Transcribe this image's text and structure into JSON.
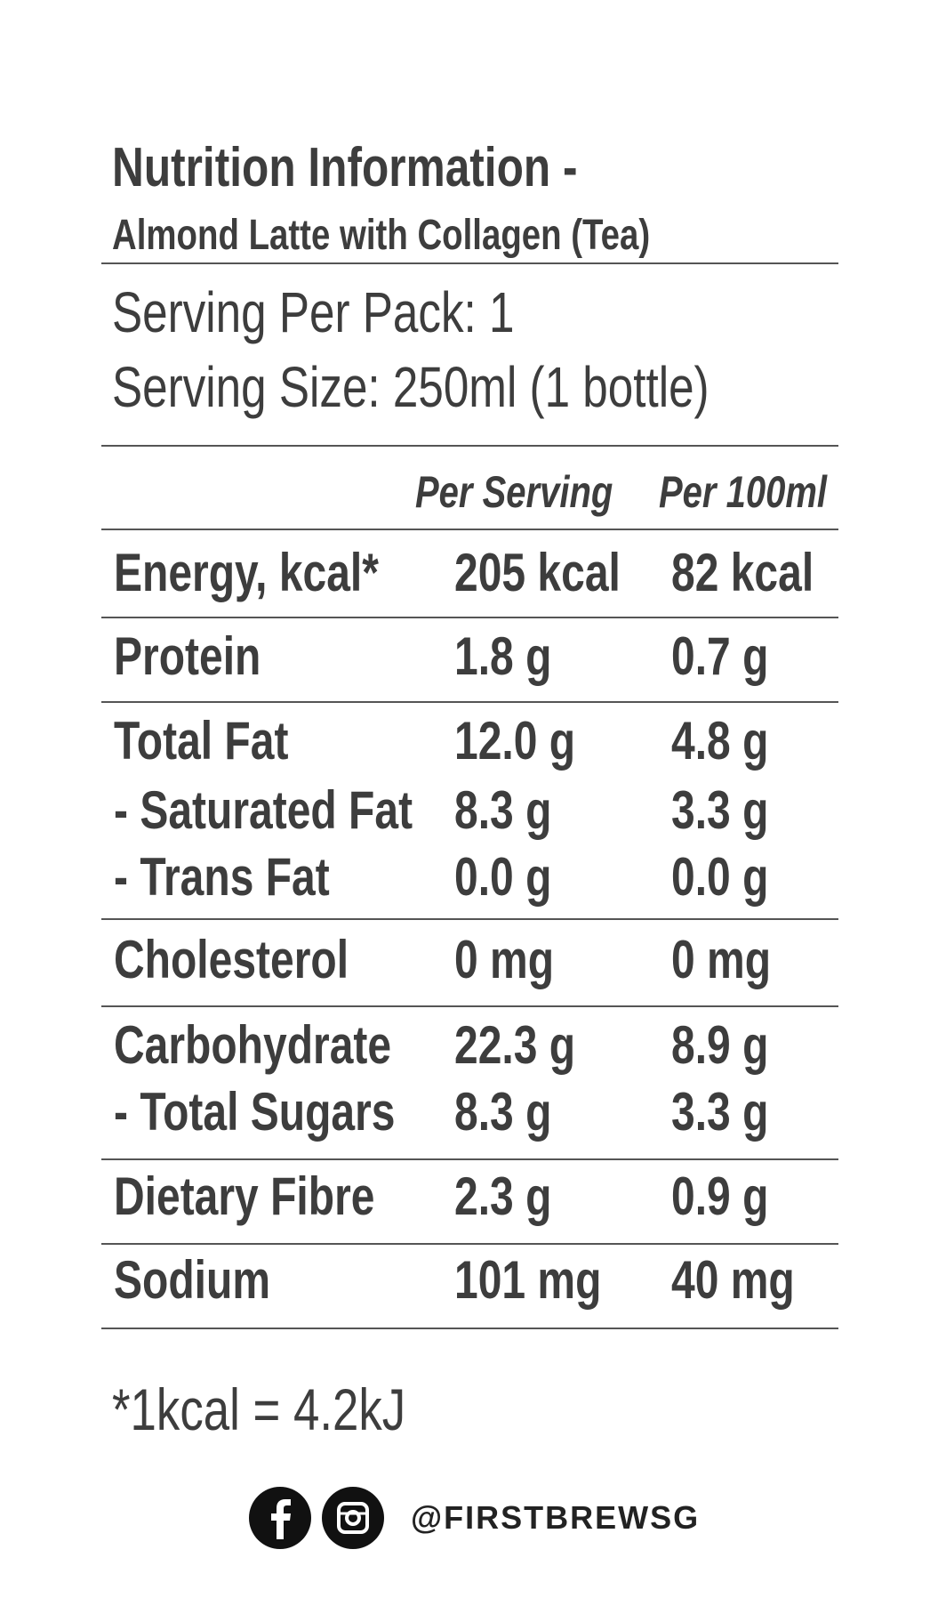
{
  "header": {
    "title": "Nutrition Information -",
    "subtitle": "Almond Latte with Collagen (Tea)"
  },
  "serving": {
    "per_pack": "Serving Per Pack: 1",
    "size": "Serving Size: 250ml (1 bottle)"
  },
  "table": {
    "columns": [
      "Per Serving",
      "Per 100ml"
    ],
    "rows": [
      [
        "Energy, kcal*",
        "205 kcal",
        "82 kcal"
      ],
      [
        "Protein",
        "1.8 g",
        "0.7 g"
      ],
      [
        "Total Fat",
        "12.0 g",
        "4.8 g"
      ],
      [
        "- Saturated Fat",
        "8.3 g",
        "3.3 g"
      ],
      [
        "- Trans Fat",
        "0.0 g",
        "0.0 g"
      ],
      [
        "Cholesterol",
        "0 mg",
        "0 mg"
      ],
      [
        "Carbohydrate",
        "22.3 g",
        "8.9 g"
      ],
      [
        "- Total Sugars",
        "8.3 g",
        "3.3 g"
      ],
      [
        "Dietary Fibre",
        "2.3 g",
        "0.9 g"
      ],
      [
        "Sodium",
        "101 mg",
        "40 mg"
      ]
    ]
  },
  "footnote": "*1kcal = 4.2kJ",
  "social": {
    "handle": "@FIRSTBREWSG"
  }
}
